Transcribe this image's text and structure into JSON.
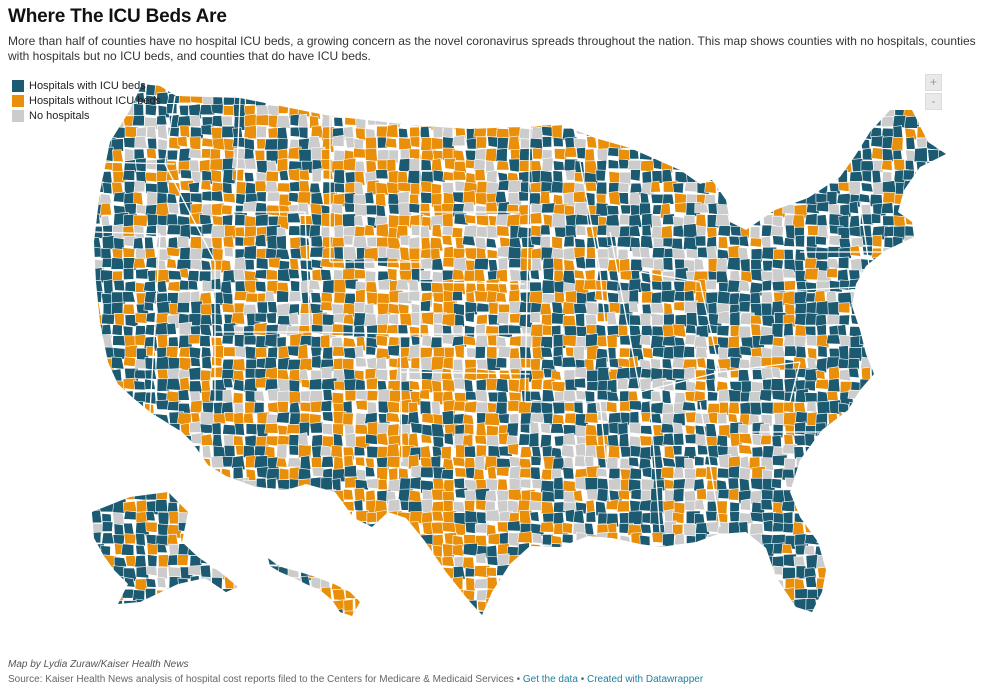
{
  "title": "Where The ICU Beds Are",
  "description": "More than half of counties have no hospital ICU beds, a growing concern as the novel coronavirus spreads throughout the nation. This map shows counties with no hospitals, counties with hospitals but no ICU beds, and counties that do have ICU beds.",
  "legend": [
    {
      "label": "Hospitals with ICU beds",
      "color": "#1b5a70"
    },
    {
      "label": "Hospitals without ICU beds",
      "color": "#e98f0a"
    },
    {
      "label": "No hospitals",
      "color": "#cccccc"
    }
  ],
  "zoom": {
    "in_label": "+",
    "out_label": "-"
  },
  "footer": {
    "byline": "Map by Lydia Zuraw/Kaiser Health News",
    "source_text": "Source: Kaiser Health News analysis of hospital cost reports filed to the Centers for Medicare & Medicaid Services",
    "separator": "•",
    "get_data_label": "Get the data",
    "created_with_label": "Created with Datawrapper"
  },
  "map": {
    "type": "choropleth",
    "region": "United States counties",
    "colors": {
      "icu": "#1b5a70",
      "no_icu": "#e98f0a",
      "none": "#cccccc",
      "border": "#ffffff"
    }
  }
}
